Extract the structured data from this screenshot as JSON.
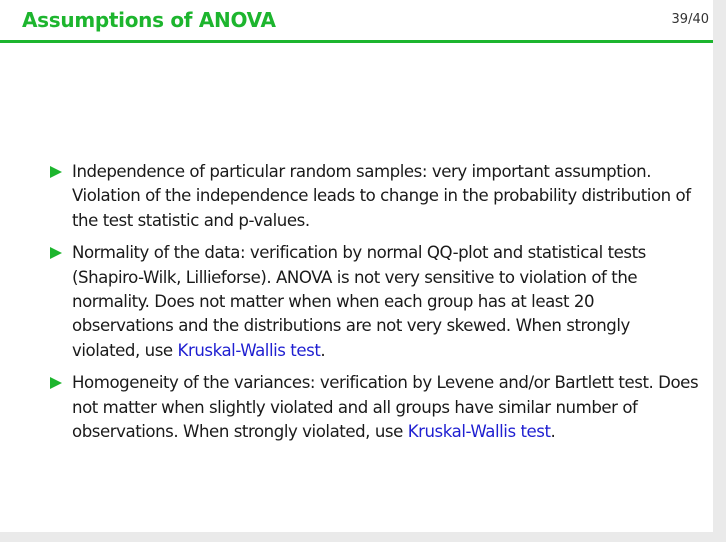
{
  "header": {
    "title": "Assumptions of ANOVA",
    "page_counter": "39/40"
  },
  "colors": {
    "accent": "#1db52e",
    "link": "#1f1fd1",
    "text": "#1a1a1a"
  },
  "items": [
    {
      "text": "Independence of particular random samples: very important assumption. Violation of the independence leads to change in the probability distribution of the test statistic and p-values."
    },
    {
      "text_before": "Normality of the data: verification by normal QQ-plot and statistical tests (Shapiro-Wilk, Lillieforse). ANOVA is not very sensitive to violation of the normality. Does not matter when when each group has at least 20 observations and the distributions are not very skewed. When strongly violated, use ",
      "link": "Kruskal-Wallis test",
      "text_after": "."
    },
    {
      "text_before": "Homogeneity of the variances: verification by Levene and/or Bartlett test. Does not matter when slightly violated and all groups have similar number of observations. When strongly violated, use ",
      "link": "Kruskal-Wallis test",
      "text_after": "."
    }
  ]
}
